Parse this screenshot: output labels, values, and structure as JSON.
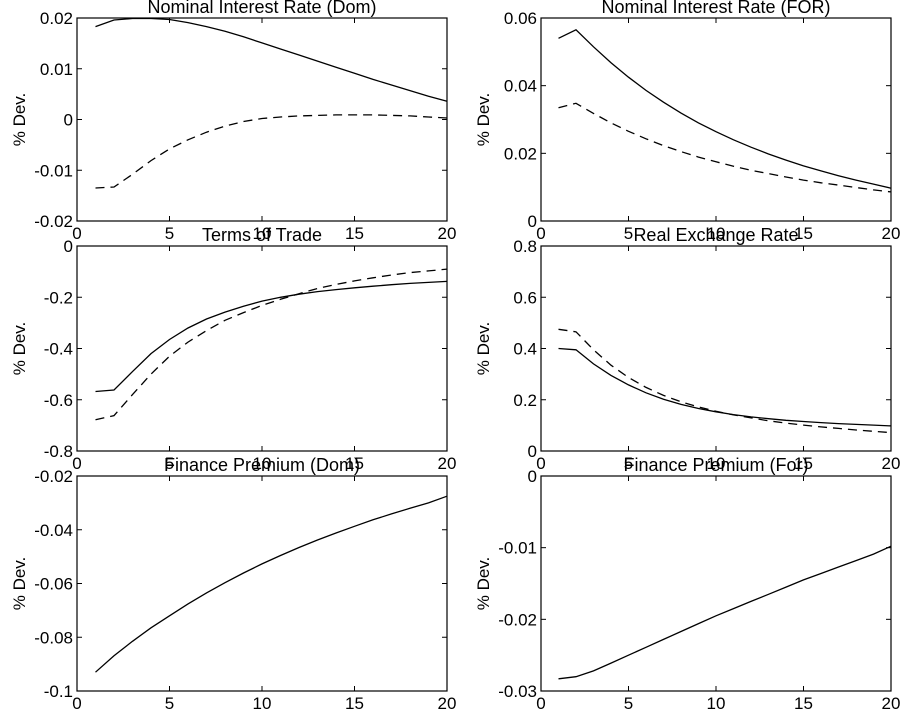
{
  "chart_data": [
    {
      "type": "line",
      "title": "Nominal Interest Rate (Dom)",
      "ylabel": "% Dev.",
      "xlim": [
        0,
        20
      ],
      "ylim": [
        -0.02,
        0.02
      ],
      "xticks": [
        0,
        5,
        10,
        15,
        20
      ],
      "yticks": [
        -0.02,
        -0.01,
        0,
        0.01,
        0.02
      ],
      "ytick_labels": [
        "-0.02",
        "-0.01",
        "0",
        "0.01",
        "0.02"
      ],
      "x": [
        1,
        2,
        3,
        4,
        5,
        6,
        7,
        8,
        9,
        10,
        11,
        12,
        13,
        14,
        15,
        16,
        17,
        18,
        19,
        20
      ],
      "series": [
        {
          "style": "solid",
          "values": [
            0.0183,
            0.0196,
            0.0199,
            0.0199,
            0.0197,
            0.0191,
            0.0183,
            0.0174,
            0.0163,
            0.0151,
            0.0139,
            0.0127,
            0.0115,
            0.0103,
            0.0091,
            0.0079,
            0.0068,
            0.0057,
            0.0046,
            0.0036
          ]
        },
        {
          "style": "dashed",
          "values": [
            -0.0135,
            -0.0133,
            -0.0108,
            -0.0081,
            -0.0058,
            -0.004,
            -0.0025,
            -0.0013,
            -0.0004,
            0.0002,
            0.0005,
            0.0007,
            0.0008,
            0.0009,
            0.0009,
            0.0009,
            0.0008,
            0.0007,
            0.0005,
            0.0003
          ]
        }
      ]
    },
    {
      "type": "line",
      "title": "Nominal Interest Rate (FOR)",
      "ylabel": "% Dev.",
      "xlim": [
        0,
        20
      ],
      "ylim": [
        0,
        0.06
      ],
      "xticks": [
        0,
        5,
        10,
        15,
        20
      ],
      "yticks": [
        0,
        0.02,
        0.04,
        0.06
      ],
      "ytick_labels": [
        "0",
        "0.02",
        "0.04",
        "0.06"
      ],
      "x": [
        1,
        2,
        3,
        4,
        5,
        6,
        7,
        8,
        9,
        10,
        11,
        12,
        13,
        14,
        15,
        16,
        17,
        18,
        19,
        20
      ],
      "series": [
        {
          "style": "solid",
          "values": [
            0.054,
            0.0565,
            0.0515,
            0.0468,
            0.0425,
            0.0386,
            0.0351,
            0.0319,
            0.029,
            0.0264,
            0.024,
            0.0218,
            0.0198,
            0.018,
            0.0163,
            0.0148,
            0.0134,
            0.0121,
            0.0109,
            0.0097
          ]
        },
        {
          "style": "dashed",
          "values": [
            0.0335,
            0.0348,
            0.0318,
            0.029,
            0.0265,
            0.0243,
            0.0223,
            0.0205,
            0.0189,
            0.0175,
            0.0162,
            0.015,
            0.014,
            0.013,
            0.0121,
            0.0113,
            0.0106,
            0.0099,
            0.0092,
            0.0086
          ]
        }
      ]
    },
    {
      "type": "line",
      "title": "Terms of Trade",
      "ylabel": "% Dev.",
      "xlim": [
        0,
        20
      ],
      "ylim": [
        -0.8,
        0
      ],
      "xticks": [
        0,
        5,
        10,
        15,
        20
      ],
      "yticks": [
        -0.8,
        -0.6,
        -0.4,
        -0.2,
        0
      ],
      "ytick_labels": [
        "-0.8",
        "-0.6",
        "-0.4",
        "-0.2",
        "0"
      ],
      "x": [
        1,
        2,
        3,
        4,
        5,
        6,
        7,
        8,
        9,
        10,
        11,
        12,
        13,
        14,
        15,
        16,
        17,
        18,
        19,
        20
      ],
      "series": [
        {
          "style": "solid",
          "values": [
            -0.568,
            -0.562,
            -0.49,
            -0.42,
            -0.365,
            -0.32,
            -0.285,
            -0.258,
            -0.235,
            -0.215,
            -0.2,
            -0.188,
            -0.178,
            -0.17,
            -0.163,
            -0.157,
            -0.151,
            -0.146,
            -0.142,
            -0.138
          ]
        },
        {
          "style": "dashed",
          "values": [
            -0.678,
            -0.662,
            -0.58,
            -0.5,
            -0.43,
            -0.375,
            -0.33,
            -0.29,
            -0.26,
            -0.232,
            -0.208,
            -0.186,
            -0.166,
            -0.15,
            -0.136,
            -0.124,
            -0.113,
            -0.104,
            -0.097,
            -0.09
          ]
        }
      ]
    },
    {
      "type": "line",
      "title": "Real Exchange Rate",
      "ylabel": "% Dev.",
      "xlim": [
        0,
        20
      ],
      "ylim": [
        0,
        0.8
      ],
      "xticks": [
        0,
        5,
        10,
        15,
        20
      ],
      "yticks": [
        0,
        0.2,
        0.4,
        0.6,
        0.8
      ],
      "ytick_labels": [
        "0",
        "0.2",
        "0.4",
        "0.6",
        "0.8"
      ],
      "x": [
        1,
        2,
        3,
        4,
        5,
        6,
        7,
        8,
        9,
        10,
        11,
        12,
        13,
        14,
        15,
        16,
        17,
        18,
        19,
        20
      ],
      "series": [
        {
          "style": "solid",
          "values": [
            0.4,
            0.395,
            0.34,
            0.295,
            0.258,
            0.227,
            0.202,
            0.182,
            0.166,
            0.153,
            0.142,
            0.133,
            0.126,
            0.12,
            0.115,
            0.111,
            0.107,
            0.104,
            0.101,
            0.098
          ]
        },
        {
          "style": "dashed",
          "values": [
            0.475,
            0.465,
            0.395,
            0.335,
            0.287,
            0.248,
            0.217,
            0.192,
            0.172,
            0.155,
            0.141,
            0.129,
            0.118,
            0.109,
            0.101,
            0.094,
            0.088,
            0.082,
            0.077,
            0.072
          ]
        }
      ]
    },
    {
      "type": "line",
      "title": "Finance Premium (Dom)",
      "ylabel": "% Dev.",
      "xlim": [
        0,
        20
      ],
      "ylim": [
        -0.1,
        -0.02
      ],
      "xticks": [
        0,
        5,
        10,
        15,
        20
      ],
      "yticks": [
        -0.1,
        -0.08,
        -0.06,
        -0.04,
        -0.02
      ],
      "ytick_labels": [
        "-0.1",
        "-0.08",
        "-0.06",
        "-0.04",
        "-0.02"
      ],
      "x": [
        1,
        2,
        3,
        4,
        5,
        6,
        7,
        8,
        9,
        10,
        11,
        12,
        13,
        14,
        15,
        16,
        17,
        18,
        19,
        20
      ],
      "series": [
        {
          "style": "solid",
          "values": [
            -0.093,
            -0.0869,
            -0.0815,
            -0.0765,
            -0.072,
            -0.0676,
            -0.0635,
            -0.0597,
            -0.0561,
            -0.0527,
            -0.0496,
            -0.0466,
            -0.0438,
            -0.0412,
            -0.0387,
            -0.0363,
            -0.0341,
            -0.032,
            -0.03,
            -0.0275
          ]
        }
      ]
    },
    {
      "type": "line",
      "title": "Finance Premium (For)",
      "ylabel": "% Dev.",
      "xlim": [
        0,
        20
      ],
      "ylim": [
        -0.03,
        0
      ],
      "xticks": [
        0,
        5,
        10,
        15,
        20
      ],
      "yticks": [
        -0.03,
        -0.02,
        -0.01,
        0
      ],
      "ytick_labels": [
        "-0.03",
        "-0.02",
        "-0.01",
        "0"
      ],
      "x": [
        1,
        2,
        3,
        4,
        5,
        6,
        7,
        8,
        9,
        10,
        11,
        12,
        13,
        14,
        15,
        16,
        17,
        18,
        19,
        20
      ],
      "series": [
        {
          "style": "solid",
          "values": [
            -0.0283,
            -0.028,
            -0.0272,
            -0.0261,
            -0.025,
            -0.0239,
            -0.0228,
            -0.0217,
            -0.0206,
            -0.0195,
            -0.0185,
            -0.0175,
            -0.0165,
            -0.0155,
            -0.0145,
            -0.0136,
            -0.0127,
            -0.0118,
            -0.0109,
            -0.0098
          ]
        }
      ]
    }
  ]
}
